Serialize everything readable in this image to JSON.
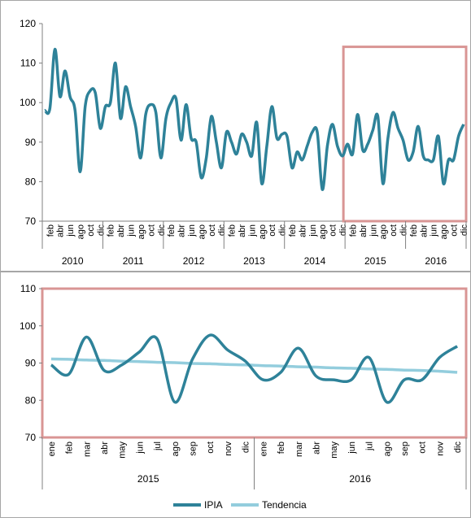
{
  "colors": {
    "ipia": "#2e8299",
    "tendencia": "#93cddd",
    "highlight": "#d99594",
    "axis": "#808080",
    "frame": "#a6a6a6"
  },
  "legend": {
    "items": [
      "IPIA",
      "Tendencia"
    ]
  },
  "chart_data": [
    {
      "type": "line",
      "title": "",
      "xlabel": "",
      "ylabel": "",
      "ylim": [
        70,
        120
      ],
      "yticks": [
        70,
        80,
        90,
        100,
        110,
        120
      ],
      "grid": false,
      "highlight_range": {
        "from_year": "2015",
        "to_year": "2016"
      },
      "month_labels": [
        "feb",
        "abr",
        "jun",
        "ago",
        "oct",
        "dic"
      ],
      "years": [
        "2010",
        "2011",
        "2012",
        "2013",
        "2014",
        "2015",
        "2016"
      ],
      "series": [
        {
          "name": "IPIA",
          "values": [
            98,
            98.5,
            113.5,
            101.5,
            108,
            101.5,
            98,
            82.5,
            99,
            103,
            102.5,
            93.5,
            99,
            100,
            110,
            96,
            104,
            99,
            94,
            86,
            97,
            99.5,
            97.5,
            86,
            96,
            100,
            101,
            90.5,
            99.5,
            91,
            90,
            81,
            86,
            96.5,
            90,
            83.5,
            92.5,
            90,
            87,
            92,
            90,
            86.5,
            95,
            79.5,
            89,
            99,
            91,
            92,
            91.5,
            83.5,
            87.5,
            85.5,
            89,
            92.5,
            92.5,
            78,
            89,
            94.5,
            89,
            86.5,
            89.5,
            87,
            97,
            88,
            89.5,
            93,
            96.5,
            79.5,
            91,
            97.5,
            93.5,
            90.5,
            85.5,
            87.5,
            94,
            86.5,
            85.5,
            85.5,
            91.5,
            79.5,
            85.5,
            85.5,
            91.5,
            94.5
          ]
        }
      ]
    },
    {
      "type": "line",
      "title": "",
      "xlabel": "",
      "ylabel": "",
      "ylim": [
        70,
        110
      ],
      "yticks": [
        70,
        80,
        90,
        100,
        110
      ],
      "grid": false,
      "legend": "bottom",
      "categories": [
        "ene",
        "feb",
        "mar",
        "abr",
        "may",
        "jun",
        "jul",
        "ago",
        "sep",
        "oct",
        "nov",
        "dic",
        "ene",
        "feb",
        "mar",
        "abr",
        "may",
        "jun",
        "jul",
        "ago",
        "sep",
        "oct",
        "nov",
        "dic"
      ],
      "years": [
        "2015",
        "2016"
      ],
      "series": [
        {
          "name": "IPIA",
          "values": [
            89.5,
            87,
            97,
            88,
            89.5,
            93,
            96.5,
            79.5,
            91,
            97.5,
            93.5,
            90.5,
            85.5,
            87.5,
            94,
            86.5,
            85.5,
            85.5,
            91.5,
            79.5,
            85.5,
            85.5,
            91.5,
            94.5
          ]
        },
        {
          "name": "Tendencia",
          "values": [
            91.1,
            91.0,
            90.8,
            90.7,
            90.5,
            90.4,
            90.2,
            90.1,
            89.9,
            89.8,
            89.6,
            89.5,
            89.3,
            89.2,
            89.0,
            88.9,
            88.7,
            88.6,
            88.4,
            88.3,
            88.1,
            88.0,
            87.8,
            87.5
          ]
        }
      ]
    }
  ]
}
